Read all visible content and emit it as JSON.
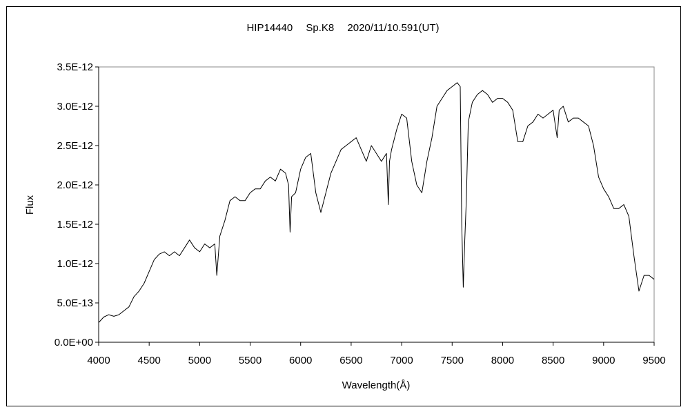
{
  "chart_data": {
    "type": "line",
    "title": "HIP14440　 Sp.K8 　2020/11/10.591(UT)",
    "xlabel": "Wavelength(Å)",
    "ylabel": "Flux",
    "xlim": [
      4000,
      9500
    ],
    "ylim": [
      0,
      3.5e-12
    ],
    "x_ticks": [
      4000,
      4500,
      5000,
      5500,
      6000,
      6500,
      7000,
      7500,
      8000,
      8500,
      9000,
      9500
    ],
    "x_tick_labels": [
      "4000",
      "4500",
      "5000",
      "5500",
      "6000",
      "6500",
      "7000",
      "7500",
      "8000",
      "8500",
      "9000",
      "9500"
    ],
    "y_ticks": [
      0,
      5e-13,
      1e-12,
      1.5e-12,
      2e-12,
      2.5e-12,
      3e-12,
      3.5e-12
    ],
    "y_tick_labels": [
      "0.0E+00",
      "5.0E-13",
      "1.0E-12",
      "1.5E-12",
      "2.0E-12",
      "2.5E-12",
      "3.0E-12",
      "3.5E-12"
    ],
    "grid": false,
    "legend": "none",
    "line_color": "#000000",
    "series": [
      {
        "x": [
          4000,
          4050,
          4100,
          4150,
          4200,
          4250,
          4300,
          4350,
          4400,
          4450,
          4500,
          4550,
          4600,
          4650,
          4700,
          4750,
          4800,
          4850,
          4900,
          4950,
          5000,
          5050,
          5100,
          5150,
          5170,
          5200,
          5250,
          5300,
          5350,
          5400,
          5450,
          5500,
          5550,
          5600,
          5650,
          5700,
          5750,
          5800,
          5850,
          5880,
          5895,
          5910,
          5950,
          6000,
          6050,
          6100,
          6150,
          6200,
          6250,
          6300,
          6350,
          6400,
          6450,
          6500,
          6550,
          6600,
          6650,
          6700,
          6750,
          6800,
          6850,
          6868,
          6880,
          6900,
          6950,
          7000,
          7050,
          7100,
          7150,
          7200,
          7250,
          7300,
          7350,
          7400,
          7450,
          7500,
          7550,
          7580,
          7595,
          7610,
          7625,
          7640,
          7660,
          7700,
          7750,
          7800,
          7850,
          7900,
          7950,
          8000,
          8050,
          8100,
          8150,
          8200,
          8250,
          8300,
          8350,
          8400,
          8450,
          8500,
          8540,
          8560,
          8600,
          8650,
          8700,
          8750,
          8800,
          8850,
          8900,
          8950,
          9000,
          9050,
          9100,
          9150,
          9200,
          9250,
          9300,
          9350,
          9400,
          9450,
          9500
        ],
        "values": [
          2.5e-13,
          3.2e-13,
          3.5e-13,
          3.3e-13,
          3.5e-13,
          4e-13,
          4.5e-13,
          5.8e-13,
          6.5e-13,
          7.5e-13,
          9e-13,
          1.05e-12,
          1.12e-12,
          1.15e-12,
          1.1e-12,
          1.15e-12,
          1.1e-12,
          1.2e-12,
          1.3e-12,
          1.2e-12,
          1.15e-12,
          1.25e-12,
          1.2e-12,
          1.25e-12,
          8.5e-13,
          1.35e-12,
          1.55e-12,
          1.8e-12,
          1.85e-12,
          1.8e-12,
          1.8e-12,
          1.9e-12,
          1.95e-12,
          1.95e-12,
          2.05e-12,
          2.1e-12,
          2.05e-12,
          2.2e-12,
          2.15e-12,
          2e-12,
          1.4e-12,
          1.85e-12,
          1.9e-12,
          2.2e-12,
          2.35e-12,
          2.4e-12,
          1.9e-12,
          1.65e-12,
          1.9e-12,
          2.15e-12,
          2.3e-12,
          2.45e-12,
          2.5e-12,
          2.55e-12,
          2.6e-12,
          2.45e-12,
          2.3e-12,
          2.5e-12,
          2.4e-12,
          2.3e-12,
          2.4e-12,
          1.75e-12,
          2.3e-12,
          2.45e-12,
          2.7e-12,
          2.9e-12,
          2.85e-12,
          2.3e-12,
          2e-12,
          1.9e-12,
          2.3e-12,
          2.6e-12,
          3e-12,
          3.1e-12,
          3.2e-12,
          3.25e-12,
          3.3e-12,
          3.25e-12,
          1.5e-12,
          7e-13,
          1.3e-12,
          1.8e-12,
          2.8e-12,
          3.05e-12,
          3.15e-12,
          3.2e-12,
          3.15e-12,
          3.05e-12,
          3.1e-12,
          3.1e-12,
          3.05e-12,
          2.95e-12,
          2.55e-12,
          2.55e-12,
          2.75e-12,
          2.8e-12,
          2.9e-12,
          2.85e-12,
          2.9e-12,
          2.95e-12,
          2.6e-12,
          2.95e-12,
          3e-12,
          2.8e-12,
          2.85e-12,
          2.85e-12,
          2.8e-12,
          2.75e-12,
          2.5e-12,
          2.1e-12,
          1.95e-12,
          1.85e-12,
          1.7e-12,
          1.7e-12,
          1.75e-12,
          1.6e-12,
          1.1e-12,
          6.5e-13,
          8.5e-13,
          8.5e-13,
          8e-13
        ]
      }
    ]
  }
}
